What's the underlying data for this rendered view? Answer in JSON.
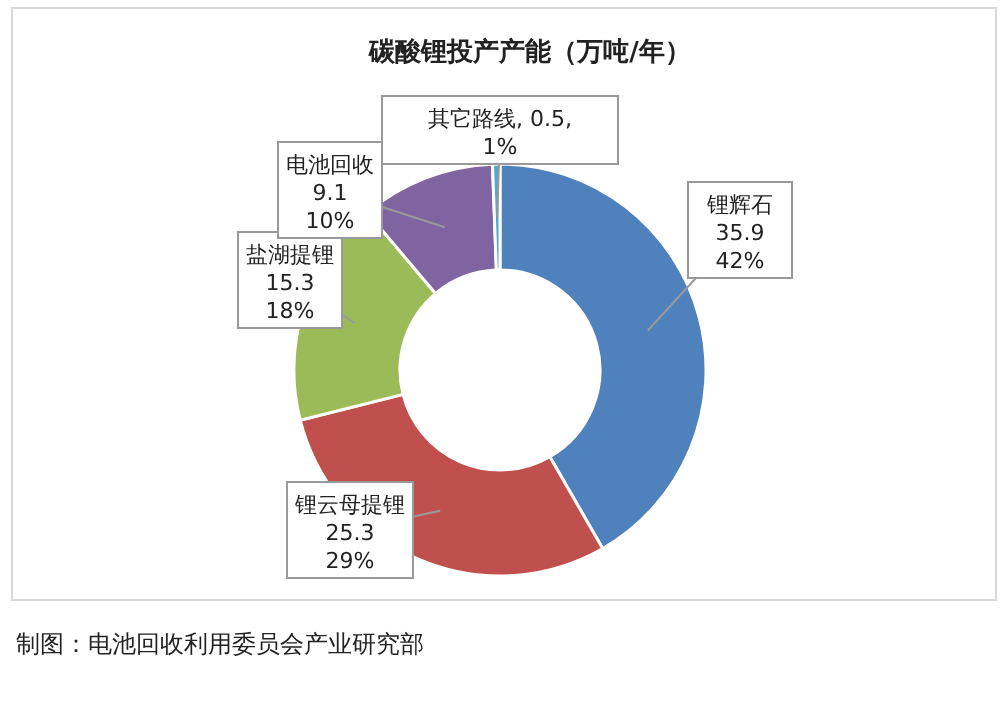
{
  "chart_data": {
    "type": "donut",
    "title": "碳酸锂投产产能（万吨/年）",
    "categories": [
      "锂辉石",
      "锂云母提锂",
      "盐湖提锂",
      "电池回收",
      "其它路线"
    ],
    "values": [
      35.9,
      25.3,
      15.3,
      9.1,
      0.5
    ],
    "colors": [
      "#4f81bd",
      "#c0504d",
      "#9bbb59",
      "#8064a2",
      "#4bacc6"
    ],
    "value_labels": [
      "35.9\n42%",
      "25.3\n29%",
      "15.3\n18%",
      "9.1\n10%",
      ", 0.5,\n1%"
    ],
    "annotations": [
      "制图：电池回收利用委员会产业研究部"
    ]
  }
}
